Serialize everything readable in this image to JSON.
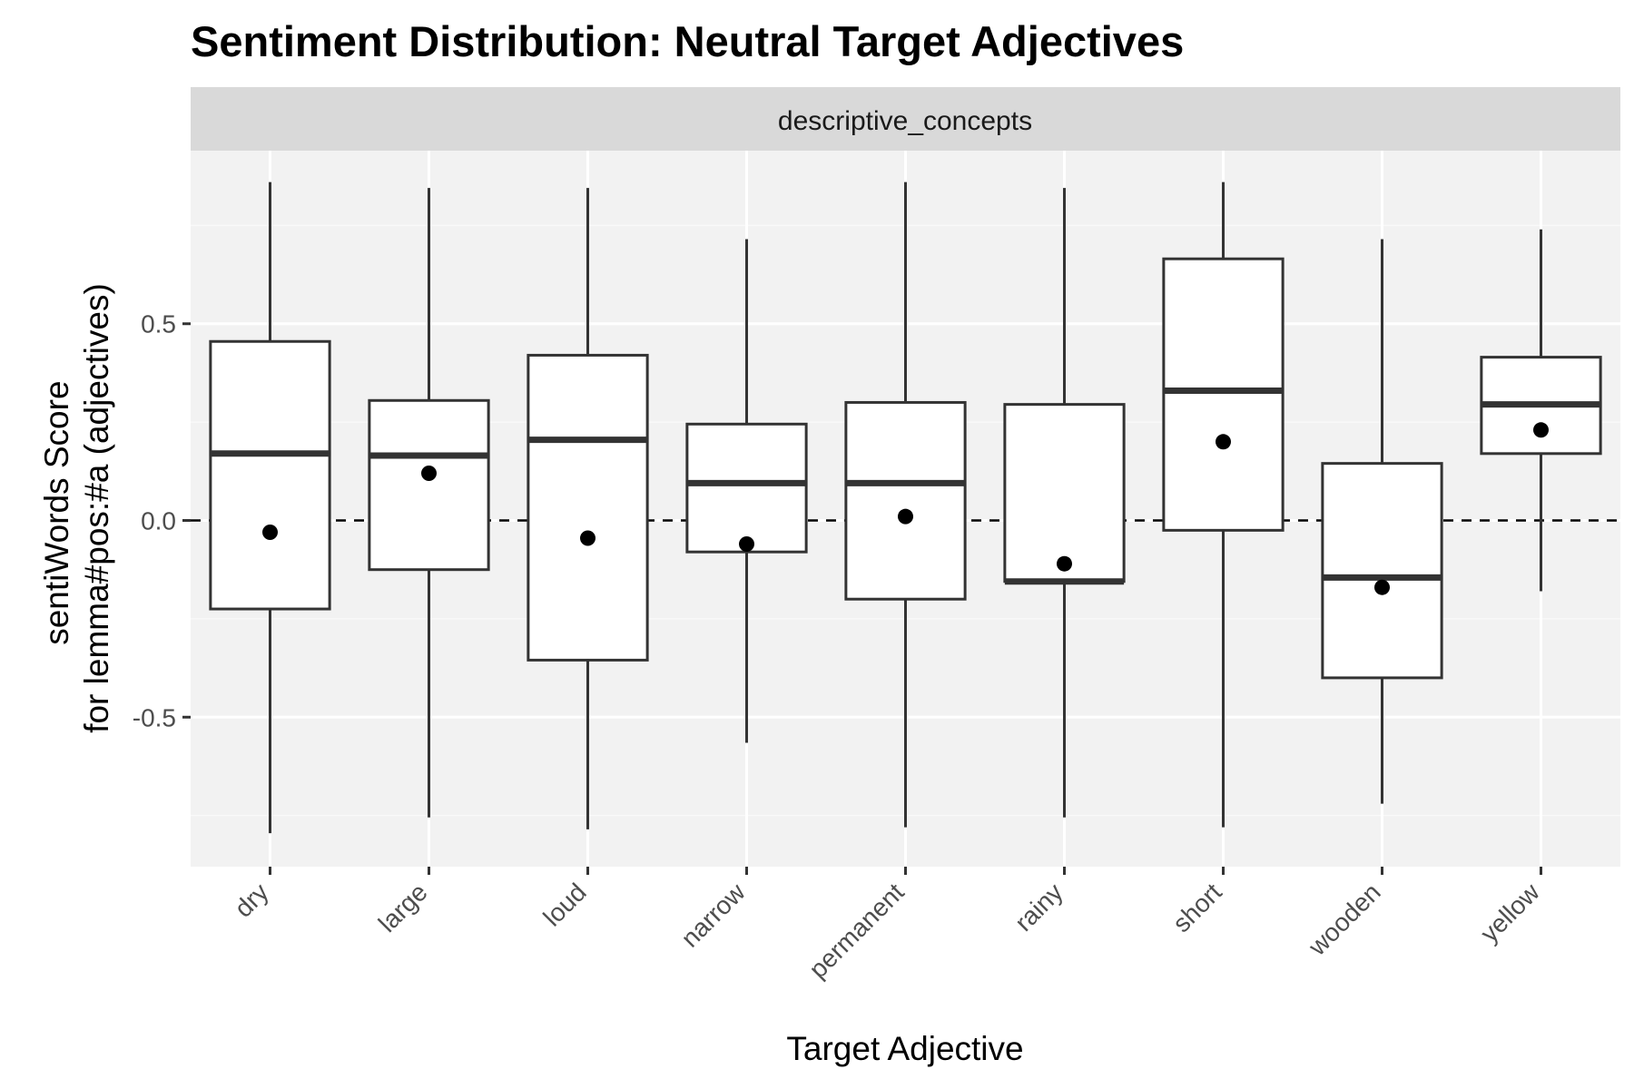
{
  "chart_data": {
    "type": "boxplot",
    "title": "Sentiment Distribution: Neutral Target Adjectives",
    "facet_label": "descriptive_concepts",
    "xlabel": "Target Adjective",
    "ylabel_lines": [
      "sentiWords Score",
      "for lemma#pos:#a (adjectives)"
    ],
    "ylim": [
      -0.88,
      0.94
    ],
    "yticks": [
      0.5,
      0.0,
      -0.5
    ],
    "ytick_labels": [
      "0.5",
      "0.0",
      "-0.5"
    ],
    "reference_line": 0.0,
    "grid": true,
    "categories": [
      "dry",
      "large",
      "loud",
      "narrow",
      "permanent",
      "rainy",
      "short",
      "wooden",
      "yellow"
    ],
    "boxes": [
      {
        "category": "dry",
        "whisker_low": -0.795,
        "q1": -0.225,
        "median": 0.17,
        "q3": 0.455,
        "whisker_high": 0.86,
        "mean": -0.03
      },
      {
        "category": "large",
        "whisker_low": -0.755,
        "q1": -0.125,
        "median": 0.165,
        "q3": 0.305,
        "whisker_high": 0.845,
        "mean": 0.12
      },
      {
        "category": "loud",
        "whisker_low": -0.785,
        "q1": -0.355,
        "median": 0.205,
        "q3": 0.42,
        "whisker_high": 0.845,
        "mean": -0.045
      },
      {
        "category": "narrow",
        "whisker_low": -0.565,
        "q1": -0.08,
        "median": 0.095,
        "q3": 0.245,
        "whisker_high": 0.715,
        "mean": -0.06
      },
      {
        "category": "permanent",
        "whisker_low": -0.78,
        "q1": -0.2,
        "median": 0.095,
        "q3": 0.3,
        "whisker_high": 0.86,
        "mean": 0.01
      },
      {
        "category": "rainy",
        "whisker_low": -0.755,
        "q1": -0.155,
        "median": -0.155,
        "q3": 0.295,
        "whisker_high": 0.845,
        "mean": -0.11
      },
      {
        "category": "short",
        "whisker_low": -0.78,
        "q1": -0.025,
        "median": 0.33,
        "q3": 0.665,
        "whisker_high": 0.86,
        "mean": 0.2
      },
      {
        "category": "wooden",
        "whisker_low": -0.72,
        "q1": -0.4,
        "median": -0.145,
        "q3": 0.145,
        "whisker_high": 0.715,
        "mean": -0.17
      },
      {
        "category": "yellow",
        "whisker_low": -0.18,
        "q1": 0.17,
        "median": 0.295,
        "q3": 0.415,
        "whisker_high": 0.74,
        "mean": 0.23
      }
    ],
    "colors": {
      "panel_background": "#f2f2f2",
      "strip_background": "#d9d9d9",
      "grid_major": "#ffffff",
      "grid_minor": "#f9f9f9",
      "box_line": "#333333",
      "box_fill": "#ffffff",
      "mean_point": "#000000"
    }
  }
}
